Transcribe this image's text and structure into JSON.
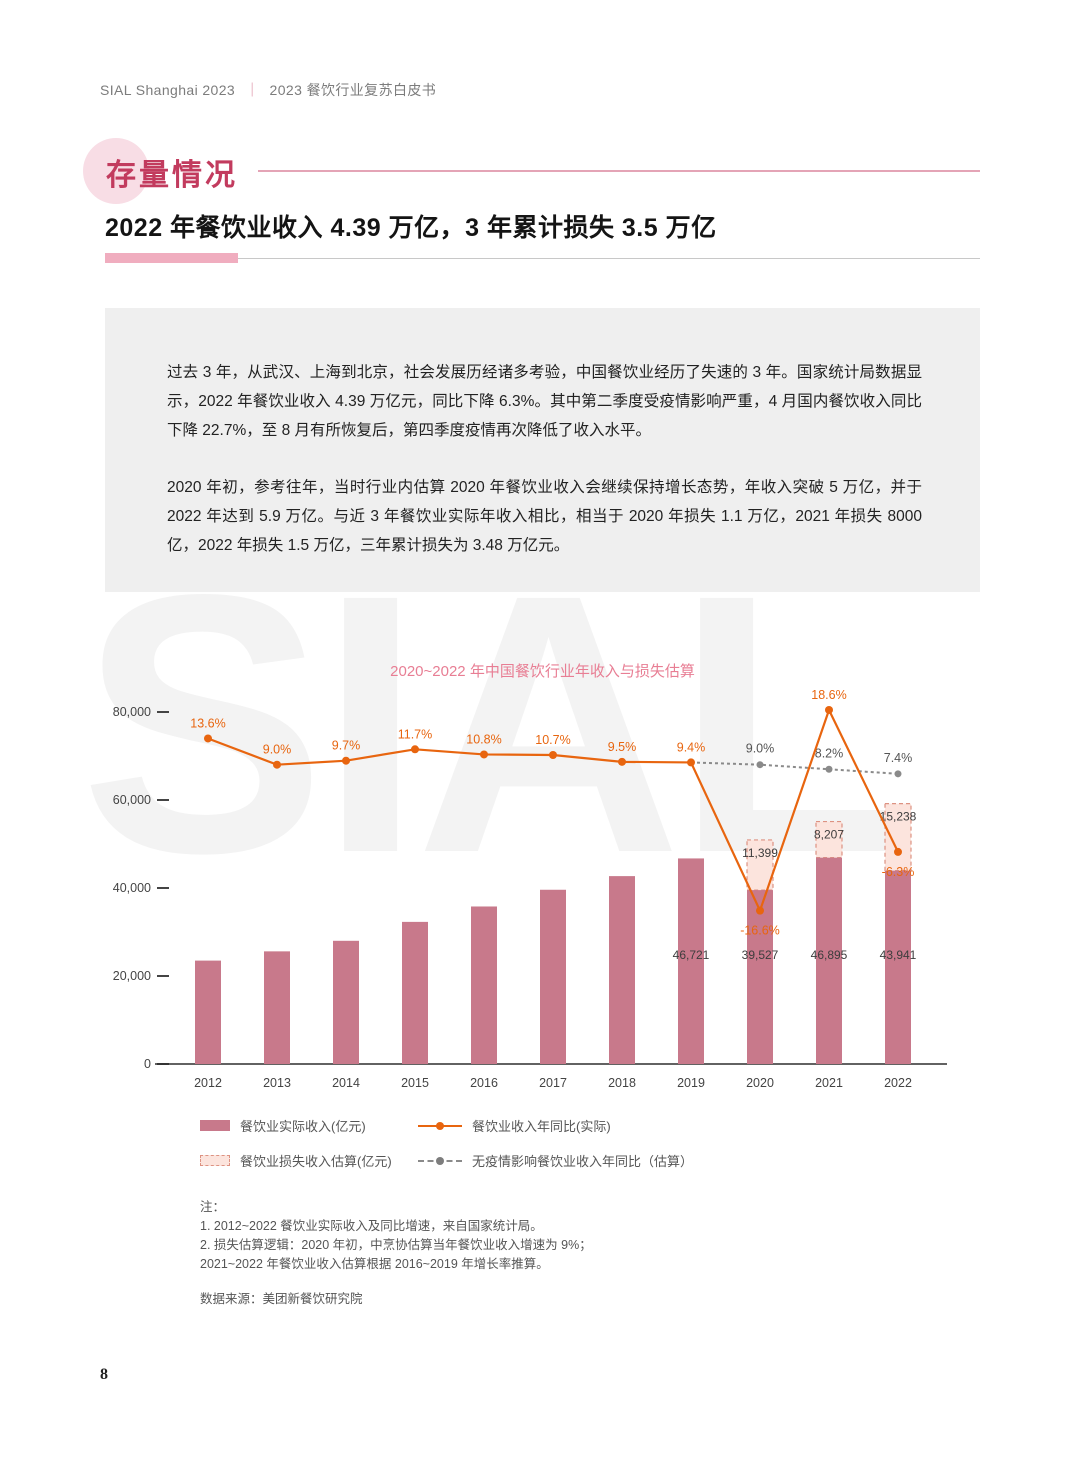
{
  "colors": {
    "accent_red": "#c23b5e",
    "accent_pink": "#f0adbf",
    "bar_pink": "#c8798b",
    "loss_fill": "#fce4dd",
    "loss_stroke": "#dd9282",
    "line_orange": "#e8650f",
    "line_gray": "#8a8a8a",
    "chart_title_pink": "#e87e94",
    "intro_bg": "#efefef"
  },
  "page": {
    "header_left": "SIAL Shanghai 2023",
    "header_sep": "｜",
    "header_right": "2023 餐饮行业复苏白皮书",
    "watermark": "SIAL",
    "page_number": "8"
  },
  "section": {
    "label": "存量情况",
    "title": "2022 年餐饮业收入 4.39 万亿，3 年累计损失 3.5 万亿"
  },
  "intro": {
    "p1": "过去 3 年，从武汉、上海到北京，社会发展历经诸多考验，中国餐饮业经历了失速的 3 年。国家统计局数据显示，2022 年餐饮业收入 4.39 万亿元，同比下降 6.3%。其中第二季度受疫情影响严重，4 月国内餐饮收入同比下降 22.7%，至 8 月有所恢复后，第四季度疫情再次降低了收入水平。",
    "p2": "2020 年初，参考往年，当时行业内估算 2020 年餐饮业收入会继续保持增长态势，年收入突破 5 万亿，并于 2022 年达到 5.9 万亿。与近 3 年餐饮业实际年收入相比，相当于 2020 年损失 1.1 万亿，2021 年损失 8000 亿，2022 年损失 1.5 万亿，三年累计损失为 3.48 万亿元。"
  },
  "chart_data": {
    "type": "bar",
    "title": "2020~2022 年中国餐饮行业年收入与损失估算",
    "categories": [
      "2012",
      "2013",
      "2014",
      "2015",
      "2016",
      "2017",
      "2018",
      "2019",
      "2020",
      "2021",
      "2022"
    ],
    "y_axis": {
      "min": 0,
      "max": 80000,
      "ticks": [
        {
          "value": 0,
          "label": "0"
        },
        {
          "value": 20000,
          "label": "20,000"
        },
        {
          "value": 40000,
          "label": "40,000"
        },
        {
          "value": 60000,
          "label": "60,000"
        },
        {
          "value": 80000,
          "label": "80,000"
        }
      ]
    },
    "series": [
      {
        "id": "actual",
        "name": "餐饮业实际收入(亿元)",
        "kind": "bar",
        "color": "#c8798b",
        "values": [
          23500,
          25600,
          28000,
          32300,
          35800,
          39600,
          42700,
          46721,
          39527,
          46895,
          43941
        ],
        "labels": [
          null,
          null,
          null,
          null,
          null,
          null,
          null,
          "46,721",
          "39,527",
          "46,895",
          "43,941"
        ]
      },
      {
        "id": "loss",
        "name": "餐饮业损失收入估算(亿元)",
        "kind": "bar-dashed-stack",
        "fill": "#fce4dd",
        "stroke": "#dd9282",
        "values": [
          null,
          null,
          null,
          null,
          null,
          null,
          null,
          null,
          11399,
          8207,
          15238
        ],
        "labels": [
          null,
          null,
          null,
          null,
          null,
          null,
          null,
          null,
          "11,399",
          "8,207",
          "15,238"
        ]
      },
      {
        "id": "yoy_actual",
        "name": "餐饮业收入年同比(实际)",
        "kind": "line",
        "color": "#e8650f",
        "values": [
          13.6,
          9.0,
          9.7,
          11.7,
          10.8,
          10.7,
          9.5,
          9.4,
          -16.6,
          18.6,
          -6.3
        ],
        "labels": [
          "13.6%",
          "9.0%",
          "9.7%",
          "11.7%",
          "10.8%",
          "10.7%",
          "9.5%",
          "9.4%",
          "-16.6%",
          "18.6%",
          "-6.3%"
        ]
      },
      {
        "id": "yoy_est",
        "name": "无疫情影响餐饮业收入年同比（估算）",
        "kind": "line-dashed",
        "color": "#8a8a8a",
        "values": [
          null,
          null,
          null,
          null,
          null,
          null,
          null,
          9.4,
          9.0,
          8.2,
          7.4
        ],
        "labels": [
          null,
          null,
          null,
          null,
          null,
          null,
          null,
          null,
          "9.0%",
          "8.2%",
          "7.4%"
        ]
      }
    ]
  },
  "legend": {
    "items": [
      {
        "label": "餐饮业实际收入(亿元)",
        "swatch": "bar"
      },
      {
        "label": "餐饮业收入年同比(实际)",
        "swatch": "line-orange"
      },
      {
        "label": "餐饮业损失收入估算(亿元)",
        "swatch": "bar-dashed"
      },
      {
        "label": "无疫情影响餐饮业收入年同比（估算）",
        "swatch": "line-gray-dashed"
      }
    ]
  },
  "notes": {
    "heading": "注：",
    "lines": [
      "1. 2012~2022 餐饮业实际收入及同比增速，来自国家统计局。",
      "2. 损失估算逻辑：2020 年初，中烹协估算当年餐饮业收入增速为 9%；",
      "2021~2022 年餐饮业收入估算根据 2016~2019 年增长率推算。"
    ],
    "source": "数据来源：美团新餐饮研究院"
  }
}
